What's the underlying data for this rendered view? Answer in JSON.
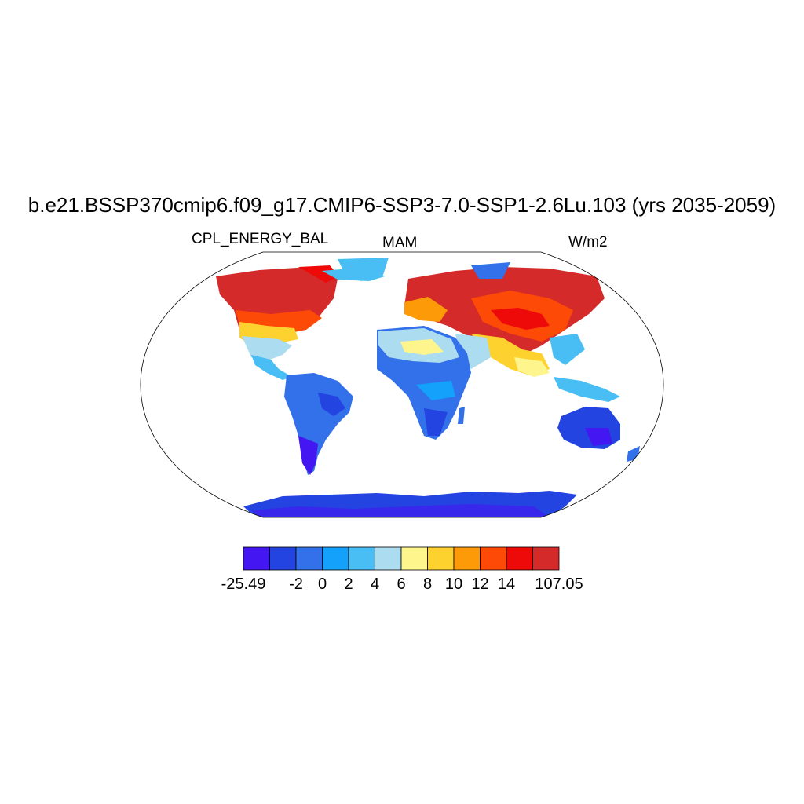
{
  "title": "b.e21.BSSP370cmip6.f09_g17.CMIP6-SSP3-7.0-SSP1-2.6Lu.103 (yrs 2035-2059)",
  "variable": "CPL_ENERGY_BAL",
  "season": "MAM",
  "units": "W/m2",
  "colorbar": {
    "colors": [
      "#4416f2",
      "#2344e0",
      "#3271ea",
      "#14a1fb",
      "#48bef4",
      "#acdcf0",
      "#fef58c",
      "#fed22e",
      "#fd9a08",
      "#fd4a06",
      "#ef0a0a",
      "#d42a2a"
    ],
    "labels": [
      {
        "text": "-25.49",
        "index": 0
      },
      {
        "text": "-2",
        "index": 2
      },
      {
        "text": "0",
        "index": 3
      },
      {
        "text": "2",
        "index": 4
      },
      {
        "text": "4",
        "index": 5
      },
      {
        "text": "6",
        "index": 6
      },
      {
        "text": "8",
        "index": 7
      },
      {
        "text": "10",
        "index": 8
      },
      {
        "text": "12",
        "index": 9
      },
      {
        "text": "14",
        "index": 10
      },
      {
        "text": "107.05",
        "index": 12
      }
    ]
  }
}
